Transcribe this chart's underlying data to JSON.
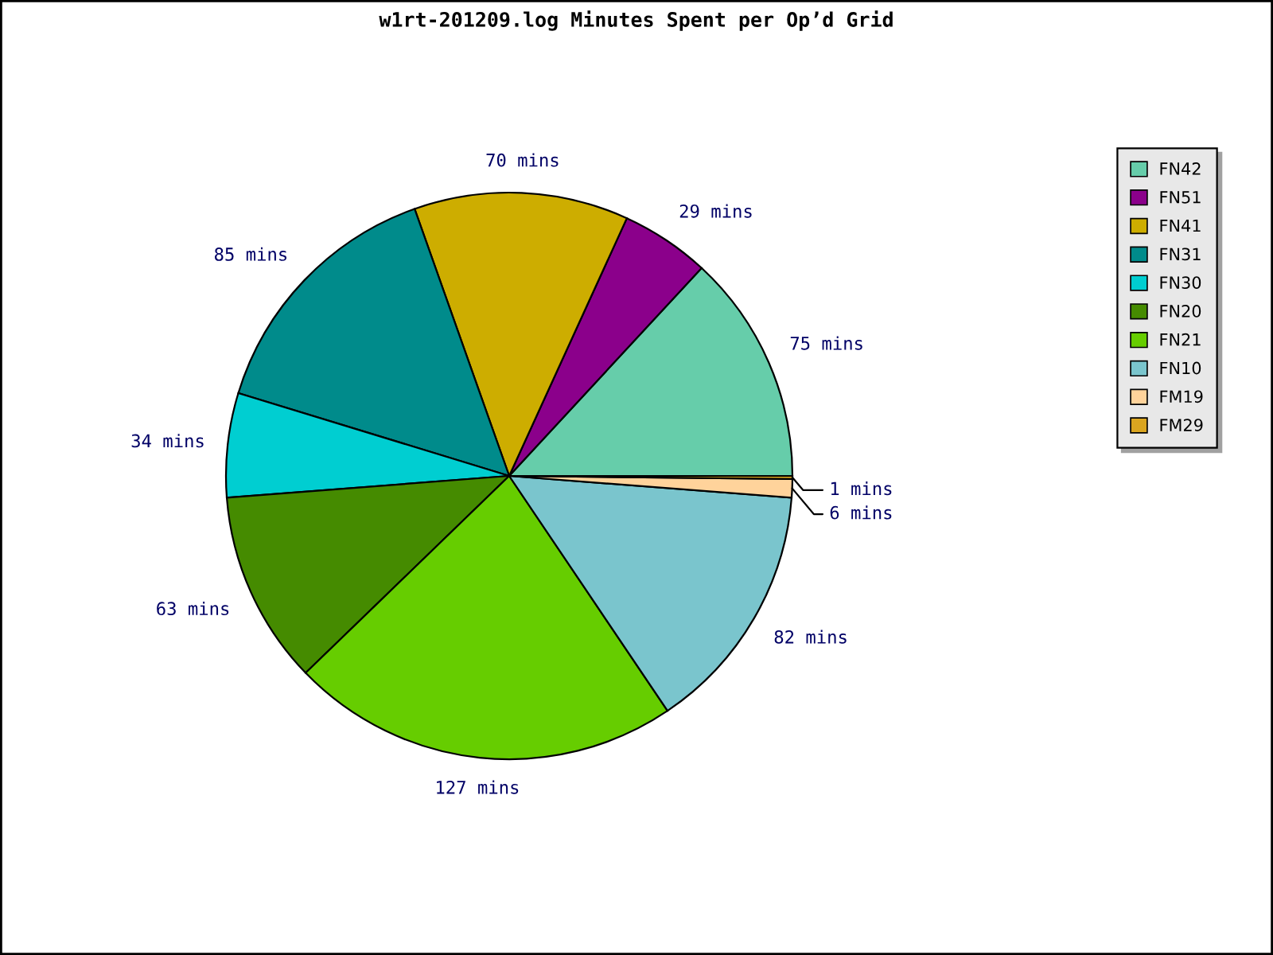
{
  "chart_data": {
    "type": "pie",
    "title": "w1rt-201209.log Minutes Spent per Op’d Grid",
    "categories": [
      "FN42",
      "FN51",
      "FN41",
      "FN31",
      "FN30",
      "FN20",
      "FN21",
      "FN10",
      "FM19",
      "FM29"
    ],
    "values": [
      75,
      29,
      70,
      85,
      34,
      63,
      127,
      82,
      6,
      1
    ],
    "value_labels": [
      "75 mins",
      "29 mins",
      "70 mins",
      "85 mins",
      "34 mins",
      "63 mins",
      "127 mins",
      "82 mins",
      "6 mins",
      "1 mins"
    ],
    "colors": [
      "#66cdaa",
      "#8b008b",
      "#cdad00",
      "#008b8b",
      "#00ced1",
      "#458b00",
      "#66cd00",
      "#7ac5cd",
      "#ffd39b",
      "#daa520"
    ],
    "legend": "right"
  }
}
